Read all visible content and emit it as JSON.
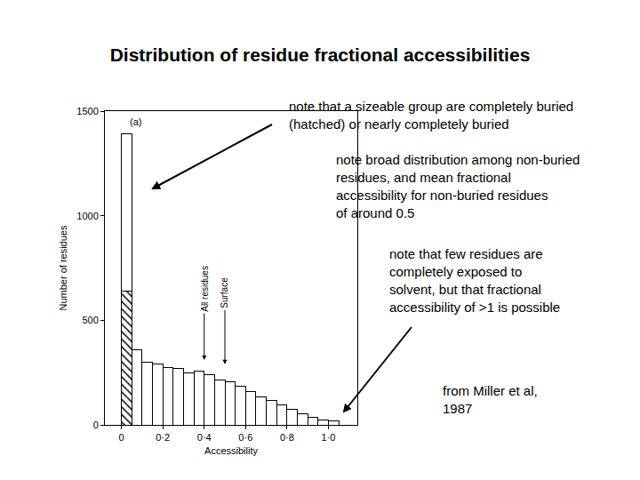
{
  "title": "Distribution of residue fractional accessibilities",
  "notes": [
    {
      "lines": [
        "note that a sizeable group are completely buried",
        "(hatched) or nearly completely buried"
      ]
    },
    {
      "lines": [
        "note broad distribution among non-buried",
        "residues, and mean fractional",
        "accessibility for non-buried residues",
        "of around 0.5"
      ]
    },
    {
      "lines": [
        "note that few residues are",
        "completely exposed to",
        "solvent, but that fractional",
        "accessibility of >1 is possible"
      ]
    }
  ],
  "source": {
    "lines": [
      "from Miller et al,",
      "1987"
    ]
  },
  "chart_data": {
    "type": "histogram",
    "x_label": "Accessibility",
    "y_label": "Number of residues",
    "bins": [
      0,
      0.05,
      0.1,
      0.15,
      0.2,
      0.25,
      0.3,
      0.35,
      0.4,
      0.45,
      0.5,
      0.55,
      0.6,
      0.65,
      0.7,
      0.75,
      0.8,
      0.85,
      0.9,
      0.95,
      1.0,
      1.05
    ],
    "stacked": true,
    "series": [
      {
        "color": "#ffffff",
        "marker": "hatched",
        "values": [
          640,
          0,
          0,
          0,
          0,
          0,
          0,
          0,
          0,
          0,
          0,
          0,
          0,
          0,
          0,
          0,
          0,
          0,
          0,
          0,
          0
        ]
      },
      {
        "color": "#ffffff",
        "values": [
          750,
          360,
          300,
          290,
          272,
          268,
          250,
          258,
          238,
          215,
          205,
          185,
          160,
          135,
          118,
          96,
          76,
          55,
          38,
          22,
          18
        ]
      }
    ],
    "xlim": [
      -0.08,
      1.14
    ],
    "xticks": [
      0,
      {
        "value": 0.2,
        "label": "0·2"
      },
      {
        "value": 0.4,
        "label": "0·4"
      },
      {
        "value": 0.6,
        "label": "0·6"
      },
      {
        "value": 0.8,
        "label": "0·8"
      },
      {
        "value": 1.0,
        "label": "1·0"
      }
    ],
    "ylim": [
      0,
      1500
    ],
    "yticks": [
      0,
      500,
      1000,
      1500
    ],
    "grid": false,
    "annotations": [
      {
        "text": "(a)",
        "x": 0.03,
        "y": 1450
      }
    ],
    "arrow_annotations": [
      {
        "text": "All residues",
        "x": 0.4,
        "y": 310
      },
      {
        "text": "Surface",
        "x": 0.5,
        "y": 290
      }
    ]
  }
}
